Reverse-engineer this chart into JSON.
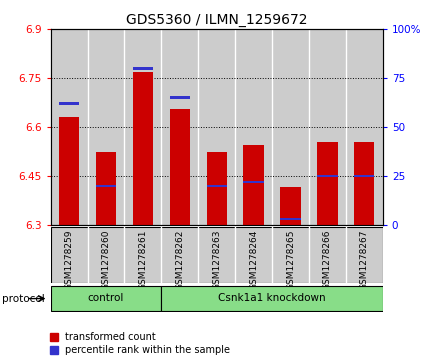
{
  "title": "GDS5360 / ILMN_1259672",
  "samples": [
    "GSM1278259",
    "GSM1278260",
    "GSM1278261",
    "GSM1278262",
    "GSM1278263",
    "GSM1278264",
    "GSM1278265",
    "GSM1278266",
    "GSM1278267"
  ],
  "red_values": [
    6.63,
    6.525,
    6.77,
    6.655,
    6.525,
    6.545,
    6.415,
    6.555,
    6.555
  ],
  "blue_values": [
    62,
    20,
    80,
    65,
    20,
    22,
    3,
    25,
    25
  ],
  "ylim_left": [
    6.3,
    6.9
  ],
  "ylim_right": [
    0,
    100
  ],
  "yticks_left": [
    6.3,
    6.45,
    6.6,
    6.75,
    6.9
  ],
  "yticks_right": [
    0,
    25,
    50,
    75,
    100
  ],
  "ytick_labels_left": [
    "6.3",
    "6.45",
    "6.6",
    "6.75",
    "6.9"
  ],
  "ytick_labels_right": [
    "0",
    "25",
    "50",
    "75",
    "100%"
  ],
  "bar_bottom": 6.3,
  "bar_width": 0.55,
  "red_color": "#CC0000",
  "blue_color": "#3333CC",
  "bg_color": "#CCCCCC",
  "green_color": "#88DD88",
  "legend_red": "transformed count",
  "legend_blue": "percentile rank within the sample",
  "title_fontsize": 10,
  "control_count": 3,
  "n_samples": 9
}
